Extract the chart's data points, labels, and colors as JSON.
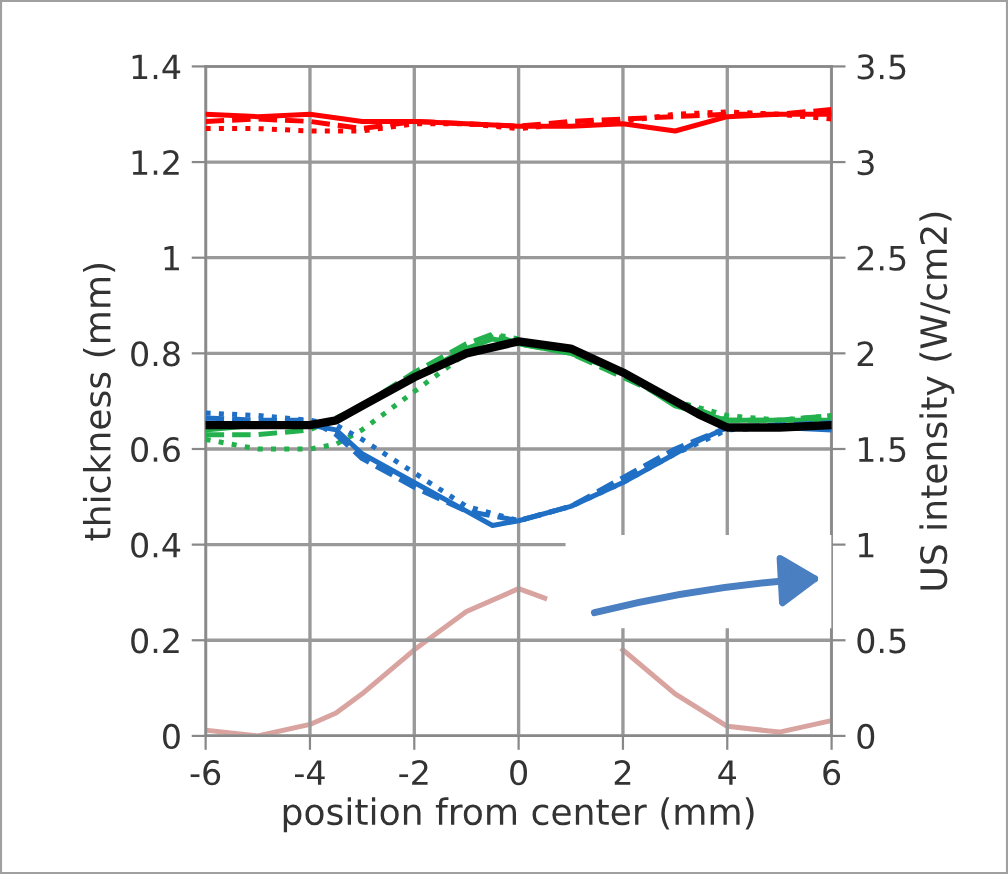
{
  "chart_data": {
    "type": "line",
    "xlabel": "position from center (mm)",
    "ylabel": "thickness (mm)",
    "y2label": "US intensity (W/cm2)",
    "xlim": [
      -6,
      6
    ],
    "xticks": [
      -6,
      -4,
      -2,
      0,
      2,
      4,
      6
    ],
    "ylim": [
      0,
      1.4
    ],
    "yticks": [
      0,
      0.2,
      0.4,
      0.6,
      0.8,
      1,
      1.2,
      1.4
    ],
    "y2lim": [
      0,
      3.5
    ],
    "y2ticks": [
      0,
      0.5,
      1,
      1.5,
      2,
      2.5,
      3,
      3.5
    ],
    "grid": true,
    "legend": false,
    "marker": "none",
    "series": [
      {
        "color": "#ff0000",
        "line_style": "solid",
        "x": [
          -6,
          -5,
          -4,
          -3,
          -2,
          -1,
          0,
          1,
          2,
          3,
          4,
          5,
          6
        ],
        "values": [
          1.3,
          1.295,
          1.3,
          1.285,
          1.285,
          1.28,
          1.275,
          1.275,
          1.28,
          1.265,
          1.295,
          1.3,
          1.3
        ]
      },
      {
        "color": "#ff0000",
        "line_style": "dashed",
        "x": [
          -6,
          -5,
          -4,
          -3,
          -2,
          -1,
          0,
          1,
          2,
          3,
          4,
          5,
          6
        ],
        "values": [
          1.285,
          1.29,
          1.285,
          1.27,
          1.285,
          1.28,
          1.275,
          1.285,
          1.29,
          1.295,
          1.3,
          1.3,
          1.31
        ]
      },
      {
        "color": "#ff0000",
        "line_style": "dotted",
        "x": [
          -6,
          -5,
          -4,
          -3,
          -2,
          -1,
          0,
          1,
          2,
          3,
          4,
          5,
          6
        ],
        "values": [
          1.27,
          1.27,
          1.265,
          1.265,
          1.28,
          1.28,
          1.27,
          1.28,
          1.285,
          1.3,
          1.305,
          1.3,
          1.29
        ]
      },
      {
        "color": "#22b14c",
        "line_style": "solid",
        "x": [
          -6,
          -5,
          -4,
          -3.5,
          -3,
          -2,
          -1,
          -0.5,
          0,
          1,
          2,
          3,
          4,
          5,
          6
        ],
        "values": [
          0.64,
          0.65,
          0.65,
          0.66,
          0.69,
          0.75,
          0.81,
          0.83,
          0.82,
          0.8,
          0.76,
          0.69,
          0.66,
          0.66,
          0.66
        ]
      },
      {
        "color": "#22b14c",
        "line_style": "dashed",
        "x": [
          -6,
          -5,
          -4,
          -3,
          -2,
          -1,
          -0.5,
          0,
          1,
          2,
          3,
          4,
          5,
          6
        ],
        "values": [
          0.63,
          0.63,
          0.64,
          0.69,
          0.76,
          0.82,
          0.84,
          0.82,
          0.8,
          0.75,
          0.7,
          0.66,
          0.66,
          0.67
        ]
      },
      {
        "color": "#22b14c",
        "line_style": "dotted",
        "x": [
          -6,
          -5,
          -4,
          -3.5,
          -3,
          -2,
          -1,
          -0.5,
          0,
          1,
          2,
          3,
          4,
          5,
          6
        ],
        "values": [
          0.62,
          0.6,
          0.6,
          0.61,
          0.64,
          0.72,
          0.8,
          0.84,
          0.83,
          0.8,
          0.76,
          0.7,
          0.67,
          0.66,
          0.67
        ]
      },
      {
        "color": "#1f6fc5",
        "line_style": "solid",
        "x": [
          -6,
          -5,
          -4,
          -3.5,
          -3,
          -2,
          -1,
          -0.5,
          0,
          1,
          2,
          3,
          3.5,
          4,
          5,
          6
        ],
        "values": [
          0.655,
          0.65,
          0.65,
          0.64,
          0.59,
          0.53,
          0.47,
          0.44,
          0.45,
          0.48,
          0.53,
          0.59,
          0.62,
          0.645,
          0.645,
          0.64
        ]
      },
      {
        "color": "#1f6fc5",
        "line_style": "dashed",
        "x": [
          -6,
          -5,
          -4,
          -3.5,
          -3,
          -2,
          -1,
          0,
          1,
          2,
          3,
          4,
          5,
          6
        ],
        "values": [
          0.665,
          0.66,
          0.66,
          0.63,
          0.58,
          0.52,
          0.47,
          0.45,
          0.48,
          0.54,
          0.6,
          0.645,
          0.65,
          0.655
        ]
      },
      {
        "color": "#1f6fc5",
        "line_style": "dotted",
        "x": [
          -6,
          -5,
          -4,
          -3.5,
          -3,
          -2,
          -1,
          0,
          1,
          2,
          3,
          4,
          5,
          6
        ],
        "values": [
          0.675,
          0.67,
          0.66,
          0.65,
          0.62,
          0.55,
          0.48,
          0.45,
          0.48,
          0.53,
          0.59,
          0.64,
          0.645,
          0.645
        ]
      },
      {
        "color": "#000000",
        "line_style": "solid",
        "x": [
          -6,
          -4,
          -3.5,
          -3,
          -2,
          -1,
          0,
          1,
          2,
          3,
          3.5,
          4,
          5,
          6
        ],
        "values": [
          0.65,
          0.65,
          0.66,
          0.69,
          0.75,
          0.8,
          0.825,
          0.81,
          0.76,
          0.7,
          0.67,
          0.645,
          0.645,
          0.65
        ]
      },
      {
        "color": "#d9a3a0",
        "line_style": "solid",
        "axis": "y2",
        "x": [
          -6,
          -5,
          -4,
          -3.5,
          -3,
          -2,
          -1,
          0,
          0.5,
          1,
          1.5,
          2,
          3,
          4,
          5,
          6
        ],
        "values": [
          0.03,
          0.0,
          0.06,
          0.12,
          0.22,
          0.45,
          0.65,
          0.77,
          0.72,
          null,
          null,
          0.45,
          0.22,
          0.05,
          0.02,
          0.08
        ]
      }
    ]
  }
}
